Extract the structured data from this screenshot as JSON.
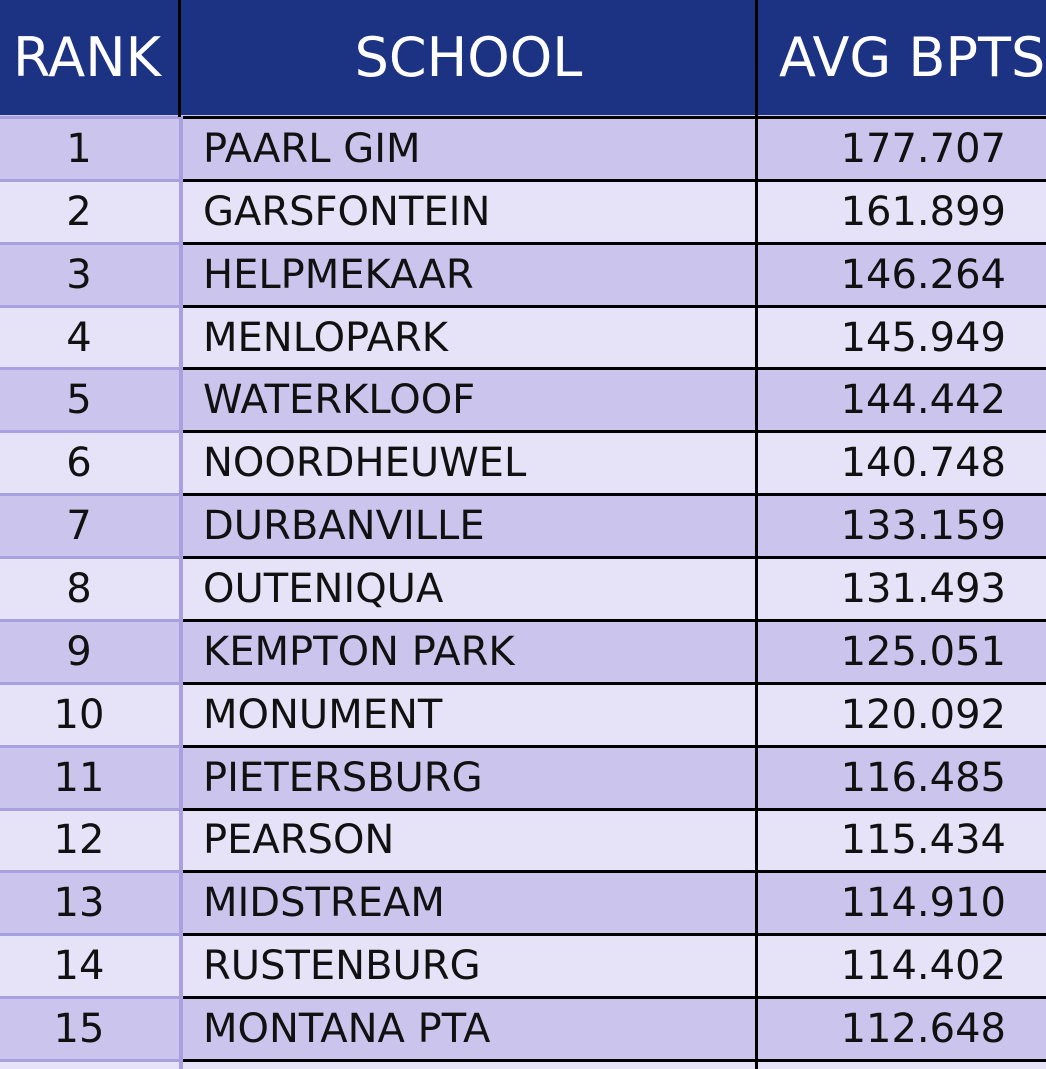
{
  "table": {
    "header": [
      "RANK",
      "SCHOOL",
      "AVG BPTS"
    ],
    "rows": [
      [
        "1",
        "PAARL GIM",
        "177.707"
      ],
      [
        "2",
        "GARSFONTEIN",
        "161.899"
      ],
      [
        "3",
        "HELPMEKAAR",
        "146.264"
      ],
      [
        "4",
        "MENLOPARK",
        "145.949"
      ],
      [
        "5",
        "WATERKLOOF",
        "144.442"
      ],
      [
        "6",
        "NOORDHEUWEL",
        "140.748"
      ],
      [
        "7",
        "DURBANVILLE",
        "133.159"
      ],
      [
        "8",
        "OUTENIQUA",
        "131.493"
      ],
      [
        "9",
        "KEMPTON PARK",
        "125.051"
      ],
      [
        "10",
        "MONUMENT",
        "120.092"
      ],
      [
        "11",
        "PIETERSBURG",
        "116.485"
      ],
      [
        "12",
        "PEARSON",
        "115.434"
      ],
      [
        "13",
        "MIDSTREAM",
        "114.910"
      ],
      [
        "14",
        "RUSTENBURG",
        "114.402"
      ],
      [
        "15",
        "MONTANA PTA",
        "112.648"
      ]
    ]
  }
}
